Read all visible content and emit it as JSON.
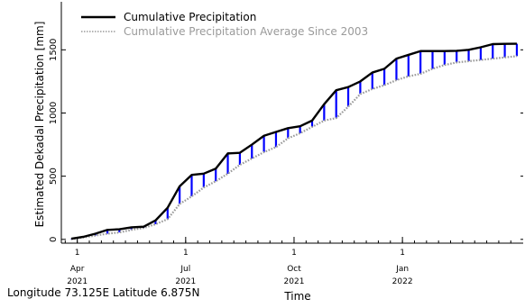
{
  "chart_data": {
    "type": "line",
    "title": "",
    "ylabel": "Estimated Dekadal Precipitation [mm]",
    "xlabel": "Time",
    "ylim": [
      -30,
      1880
    ],
    "yticks": [
      0,
      500,
      1000,
      1500
    ],
    "x_ticks": [
      {
        "day": "1",
        "month": "Apr",
        "year": "2021",
        "index": 0.5
      },
      {
        "day": "1",
        "month": "Jul",
        "year": "2021",
        "index": 9.5
      },
      {
        "day": "1",
        "month": "Oct",
        "year": "2021",
        "index": 18.5
      },
      {
        "day": "1",
        "month": "Jan",
        "year": "2022",
        "index": 27.5
      }
    ],
    "x_dekads": [
      "2021-03-11",
      "2021-03-21",
      "2021-04-01",
      "2021-04-11",
      "2021-04-21",
      "2021-05-01",
      "2021-05-11",
      "2021-05-21",
      "2021-06-01",
      "2021-06-11",
      "2021-06-21",
      "2021-07-01",
      "2021-07-11",
      "2021-07-21",
      "2021-08-01",
      "2021-08-11",
      "2021-08-21",
      "2021-09-01",
      "2021-09-11",
      "2021-09-21",
      "2021-10-01",
      "2021-10-11",
      "2021-10-21",
      "2021-11-01",
      "2021-11-11",
      "2021-11-21",
      "2021-12-01",
      "2021-12-11",
      "2021-12-21",
      "2022-01-01",
      "2022-01-11",
      "2022-01-21",
      "2022-02-01",
      "2022-02-11",
      "2022-02-21",
      "2022-03-01",
      "2022-03-11",
      "2022-03-21"
    ],
    "series": [
      {
        "name": "Cumulative Precipitation",
        "color": "#000000",
        "values": [
          5,
          20,
          45,
          75,
          80,
          95,
          100,
          150,
          250,
          420,
          510,
          520,
          560,
          680,
          685,
          750,
          820,
          850,
          880,
          895,
          940,
          1070,
          1180,
          1205,
          1250,
          1320,
          1350,
          1430,
          1460,
          1490,
          1490,
          1490,
          1492,
          1500,
          1520,
          1545,
          1547,
          1548
        ]
      },
      {
        "name": "Cumulative Precipitation Average Since 2003",
        "color": "#9a9a9a",
        "values": [
          2,
          15,
          30,
          45,
          55,
          75,
          90,
          120,
          160,
          280,
          340,
          410,
          460,
          520,
          590,
          640,
          690,
          730,
          800,
          840,
          890,
          940,
          960,
          1050,
          1150,
          1190,
          1220,
          1260,
          1290,
          1310,
          1350,
          1380,
          1400,
          1410,
          1420,
          1430,
          1440,
          1450
        ]
      }
    ],
    "difference_bars": {
      "positive_color": "#0000ff",
      "negative_color": "#ff0000"
    },
    "legend_placement": "top-left",
    "grid": false
  },
  "footer": {
    "location": "Longitude 73.125E Latitude 6.875N"
  }
}
